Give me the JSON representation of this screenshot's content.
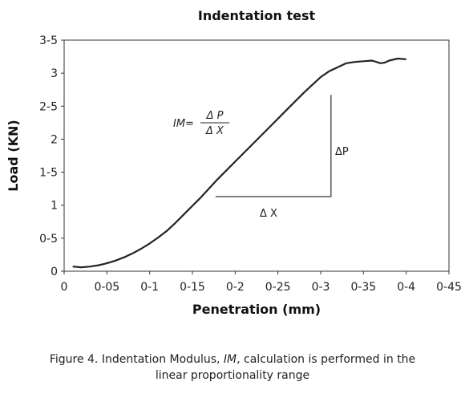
{
  "chart_data": {
    "type": "line",
    "title": "Indentation test",
    "xlabel": "Penetration (mm)",
    "ylabel": "Load (KN)",
    "xlim": [
      0,
      0.45
    ],
    "ylim": [
      0,
      3.5
    ],
    "x_ticks": [
      0,
      0.05,
      0.1,
      0.15,
      0.2,
      0.25,
      0.3,
      0.35,
      0.4,
      0.45
    ],
    "x_tick_labels": [
      "0",
      "0-05",
      "0-1",
      "0-15",
      "0-2",
      "0-25",
      "0-3",
      "0-35",
      "0-4",
      "0-45"
    ],
    "y_ticks": [
      0,
      0.5,
      1,
      1.5,
      2,
      2.5,
      3,
      3.5
    ],
    "y_tick_labels": [
      "0",
      "0-5",
      "1",
      "1-5",
      "2",
      "2-5",
      "3",
      "3-5"
    ],
    "grid": false,
    "legend": "none",
    "series": [
      {
        "x": [
          0.01,
          0.02,
          0.03,
          0.04,
          0.05,
          0.06,
          0.07,
          0.08,
          0.09,
          0.1,
          0.11,
          0.12,
          0.13,
          0.14,
          0.15,
          0.16,
          0.17,
          0.18,
          0.2,
          0.22,
          0.24,
          0.26,
          0.28,
          0.3,
          0.31,
          0.32,
          0.33,
          0.34,
          0.35,
          0.36,
          0.37,
          0.375,
          0.38,
          0.39,
          0.4
        ],
        "y": [
          0.07,
          0.06,
          0.07,
          0.09,
          0.12,
          0.16,
          0.21,
          0.27,
          0.34,
          0.42,
          0.51,
          0.61,
          0.73,
          0.86,
          0.99,
          1.12,
          1.26,
          1.4,
          1.66,
          1.92,
          2.18,
          2.44,
          2.7,
          2.94,
          3.03,
          3.09,
          3.15,
          3.17,
          3.18,
          3.19,
          3.15,
          3.16,
          3.19,
          3.22,
          3.21
        ]
      }
    ],
    "color": "#222222",
    "annotations": {
      "formula_lhs": "IM=",
      "formula_num": "Δ P",
      "formula_den": "Δ X",
      "delta_p": "ΔP",
      "delta_x": "Δ X",
      "triangle": {
        "x1": 0.177,
        "x2": 0.312,
        "y1": 1.13,
        "y2": 2.67
      }
    }
  },
  "caption": {
    "line1_a": "Figure 4. Indentation Modulus, ",
    "line1_b": "IM",
    "line1_c": ", calculation is performed in the",
    "line2": "linear proportionality range"
  }
}
